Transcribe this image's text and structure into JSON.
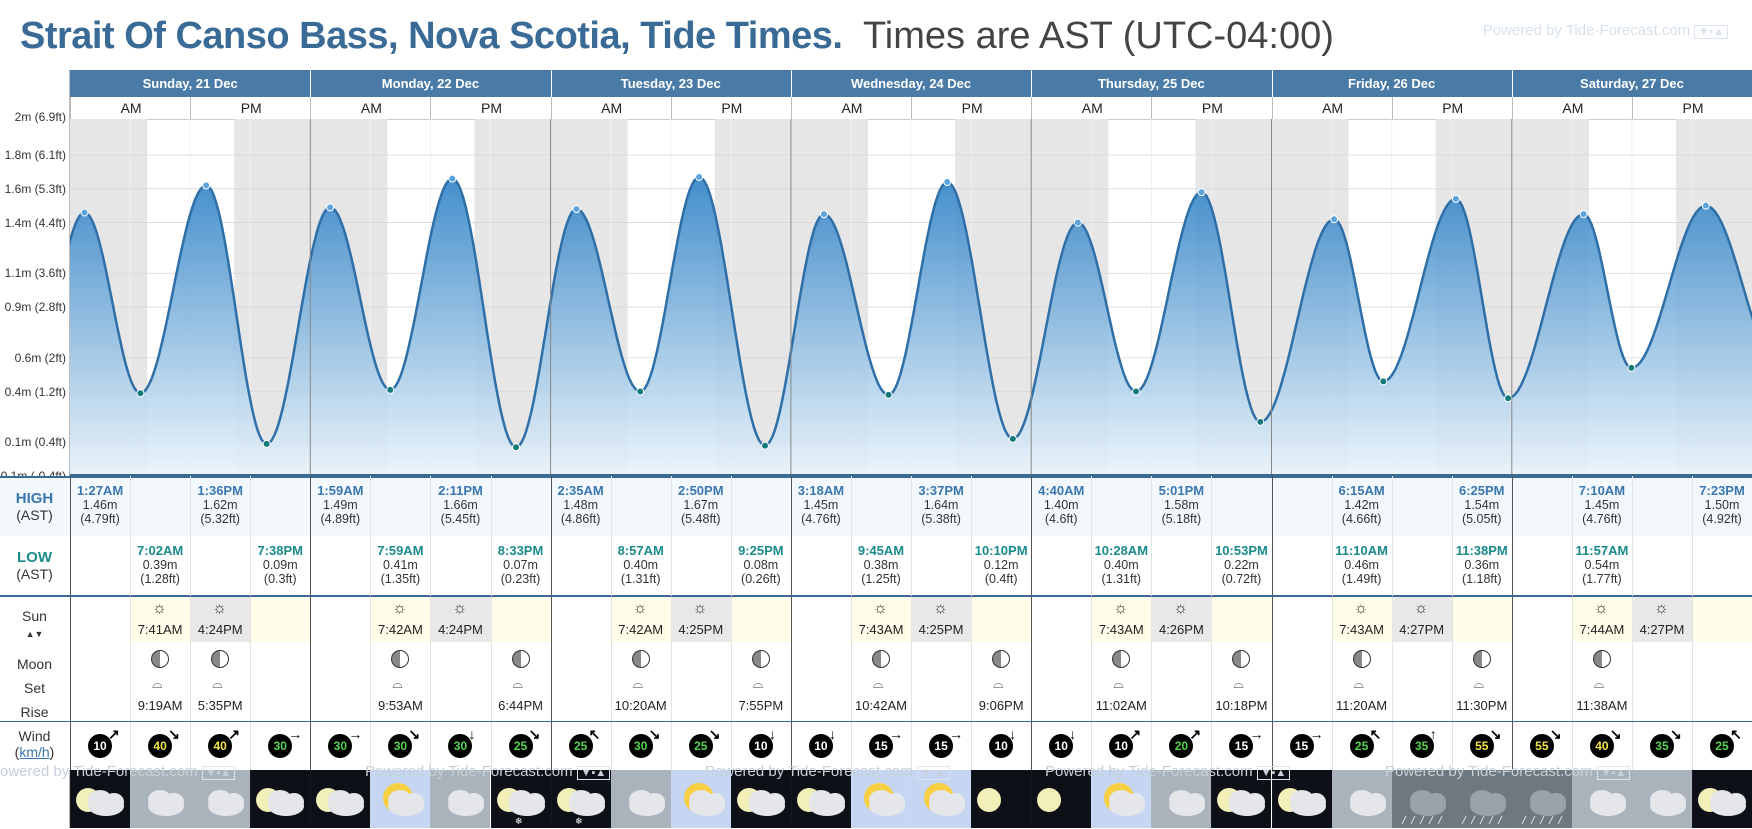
{
  "title": {
    "location": "Strait Of Canso Bass, Nova Scotia, Tide Times.",
    "timezone": "Times are AST (UTC-04:00)"
  },
  "powered_by": "Powered by Tide-Forecast.com",
  "labels": {
    "am": "AM",
    "pm": "PM",
    "high": "HIGH",
    "low": "LOW",
    "ast": "(AST)",
    "sun": "Sun",
    "moon": "Moon",
    "set": "Set",
    "rise": "Rise",
    "wind": "Wind",
    "wind_unit": "km/h"
  },
  "days": [
    "Sunday, 21 Dec",
    "Monday, 22 Dec",
    "Tuesday, 23 Dec",
    "Wednesday, 24 Dec",
    "Thursday, 25 Dec",
    "Friday, 26 Dec",
    "Saturday, 27 Dec"
  ],
  "chart_data": {
    "type": "area",
    "ylabel": "",
    "ylim": [
      -0.1,
      2.0
    ],
    "yticks": [
      "1.8m (6.1ft)",
      "1.6m (5.3ft)",
      "1.4m (4.4ft)",
      "1.1m (3.6ft)",
      "0.9m (2.8ft)",
      "0.6m (2ft)",
      "0.4m (1.2ft)",
      "0.1m (0.4ft)",
      "-0.1m (-0.4ft)"
    ],
    "ytick_values": [
      1.8,
      1.6,
      1.4,
      1.1,
      0.9,
      0.6,
      0.4,
      0.1,
      -0.1
    ],
    "top_tick_partial": "2m (6.9ft)",
    "series": [
      {
        "points": [
          {
            "day": 0,
            "time": "1:27AM",
            "h": 1.46,
            "kind": "high"
          },
          {
            "day": 0,
            "time": "7:02AM",
            "h": 0.39,
            "kind": "low"
          },
          {
            "day": 0,
            "time": "1:36PM",
            "h": 1.62,
            "kind": "high"
          },
          {
            "day": 0,
            "time": "7:38PM",
            "h": 0.09,
            "kind": "low"
          },
          {
            "day": 1,
            "time": "1:59AM",
            "h": 1.49,
            "kind": "high"
          },
          {
            "day": 1,
            "time": "7:59AM",
            "h": 0.41,
            "kind": "low"
          },
          {
            "day": 1,
            "time": "2:11PM",
            "h": 1.66,
            "kind": "high"
          },
          {
            "day": 1,
            "time": "8:33PM",
            "h": 0.07,
            "kind": "low"
          },
          {
            "day": 2,
            "time": "2:35AM",
            "h": 1.48,
            "kind": "high"
          },
          {
            "day": 2,
            "time": "8:57AM",
            "h": 0.4,
            "kind": "low"
          },
          {
            "day": 2,
            "time": "2:50PM",
            "h": 1.67,
            "kind": "high"
          },
          {
            "day": 2,
            "time": "9:25PM",
            "h": 0.08,
            "kind": "low"
          },
          {
            "day": 3,
            "time": "3:18AM",
            "h": 1.45,
            "kind": "high"
          },
          {
            "day": 3,
            "time": "9:45AM",
            "h": 0.38,
            "kind": "low"
          },
          {
            "day": 3,
            "time": "3:37PM",
            "h": 1.64,
            "kind": "high"
          },
          {
            "day": 3,
            "time": "10:10PM",
            "h": 0.12,
            "kind": "low"
          },
          {
            "day": 4,
            "time": "4:40AM",
            "h": 1.4,
            "kind": "high"
          },
          {
            "day": 4,
            "time": "10:28AM",
            "h": 0.4,
            "kind": "low"
          },
          {
            "day": 4,
            "time": "5:01PM",
            "h": 1.58,
            "kind": "high"
          },
          {
            "day": 4,
            "time": "10:53PM",
            "h": 0.22,
            "kind": "low"
          },
          {
            "day": 5,
            "time": "6:15AM",
            "h": 1.42,
            "kind": "high"
          },
          {
            "day": 5,
            "time": "11:10AM",
            "h": 0.46,
            "kind": "low"
          },
          {
            "day": 5,
            "time": "6:25PM",
            "h": 1.54,
            "kind": "high"
          },
          {
            "day": 5,
            "time": "11:38PM",
            "h": 0.36,
            "kind": "low"
          },
          {
            "day": 6,
            "time": "7:10AM",
            "h": 1.45,
            "kind": "high"
          },
          {
            "day": 6,
            "time": "11:57AM",
            "h": 0.54,
            "kind": "low"
          },
          {
            "day": 6,
            "time": "7:23PM",
            "h": 1.5,
            "kind": "high"
          }
        ]
      }
    ]
  },
  "tides": {
    "high": [
      {
        "day": 0,
        "slot": 0,
        "time": "1:27AM",
        "m": "1.46m",
        "ft": "(4.79ft)"
      },
      {
        "day": 0,
        "slot": 2,
        "time": "1:36PM",
        "m": "1.62m",
        "ft": "(5.32ft)"
      },
      {
        "day": 1,
        "slot": 0,
        "time": "1:59AM",
        "m": "1.49m",
        "ft": "(4.89ft)"
      },
      {
        "day": 1,
        "slot": 2,
        "time": "2:11PM",
        "m": "1.66m",
        "ft": "(5.45ft)"
      },
      {
        "day": 2,
        "slot": 0,
        "time": "2:35AM",
        "m": "1.48m",
        "ft": "(4.86ft)"
      },
      {
        "day": 2,
        "slot": 2,
        "time": "2:50PM",
        "m": "1.67m",
        "ft": "(5.48ft)"
      },
      {
        "day": 3,
        "slot": 0,
        "time": "3:18AM",
        "m": "1.45m",
        "ft": "(4.76ft)"
      },
      {
        "day": 3,
        "slot": 2,
        "time": "3:37PM",
        "m": "1.64m",
        "ft": "(5.38ft)"
      },
      {
        "day": 4,
        "slot": 0,
        "time": "4:40AM",
        "m": "1.40m",
        "ft": "(4.6ft)"
      },
      {
        "day": 4,
        "slot": 2,
        "time": "5:01PM",
        "m": "1.58m",
        "ft": "(5.18ft)"
      },
      {
        "day": 5,
        "slot": 1,
        "time": "6:15AM",
        "m": "1.42m",
        "ft": "(4.66ft)"
      },
      {
        "day": 5,
        "slot": 3,
        "time": "6:25PM",
        "m": "1.54m",
        "ft": "(5.05ft)"
      },
      {
        "day": 6,
        "slot": 1,
        "time": "7:10AM",
        "m": "1.45m",
        "ft": "(4.76ft)"
      },
      {
        "day": 6,
        "slot": 3,
        "time": "7:23PM",
        "m": "1.50m",
        "ft": "(4.92ft)"
      }
    ],
    "low": [
      {
        "day": 0,
        "slot": 1,
        "time": "7:02AM",
        "m": "0.39m",
        "ft": "(1.28ft)"
      },
      {
        "day": 0,
        "slot": 3,
        "time": "7:38PM",
        "m": "0.09m",
        "ft": "(0.3ft)"
      },
      {
        "day": 1,
        "slot": 1,
        "time": "7:59AM",
        "m": "0.41m",
        "ft": "(1.35ft)"
      },
      {
        "day": 1,
        "slot": 3,
        "time": "8:33PM",
        "m": "0.07m",
        "ft": "(0.23ft)"
      },
      {
        "day": 2,
        "slot": 1,
        "time": "8:57AM",
        "m": "0.40m",
        "ft": "(1.31ft)"
      },
      {
        "day": 2,
        "slot": 3,
        "time": "9:25PM",
        "m": "0.08m",
        "ft": "(0.26ft)"
      },
      {
        "day": 3,
        "slot": 1,
        "time": "9:45AM",
        "m": "0.38m",
        "ft": "(1.25ft)"
      },
      {
        "day": 3,
        "slot": 3,
        "time": "10:10PM",
        "m": "0.12m",
        "ft": "(0.4ft)"
      },
      {
        "day": 4,
        "slot": 1,
        "time": "10:28AM",
        "m": "0.40m",
        "ft": "(1.31ft)"
      },
      {
        "day": 4,
        "slot": 3,
        "time": "10:53PM",
        "m": "0.22m",
        "ft": "(0.72ft)"
      },
      {
        "day": 5,
        "slot": 1,
        "time": "11:10AM",
        "m": "0.46m",
        "ft": "(1.49ft)"
      },
      {
        "day": 5,
        "slot": 3,
        "time": "11:38PM",
        "m": "0.36m",
        "ft": "(1.18ft)"
      },
      {
        "day": 6,
        "slot": 1,
        "time": "11:57AM",
        "m": "0.54m",
        "ft": "(1.77ft)"
      }
    ]
  },
  "sun": [
    {
      "rise": "7:41AM",
      "set": "4:24PM"
    },
    {
      "rise": "7:42AM",
      "set": "4:24PM"
    },
    {
      "rise": "7:42AM",
      "set": "4:25PM"
    },
    {
      "rise": "7:43AM",
      "set": "4:25PM"
    },
    {
      "rise": "7:43AM",
      "set": "4:26PM"
    },
    {
      "rise": "7:43AM",
      "set": "4:27PM"
    },
    {
      "rise": "7:44AM",
      "set": "4:27PM"
    }
  ],
  "moon": [
    {
      "slot": 1,
      "time": "9:19AM",
      "kind": "rise"
    },
    {
      "slot": 2,
      "time": "5:35PM",
      "kind": "set"
    },
    {
      "slot": 1,
      "time": "9:53AM",
      "kind": "rise"
    },
    {
      "slot": 3,
      "time": "6:44PM",
      "kind": "set"
    },
    {
      "slot": 1,
      "time": "10:20AM",
      "kind": "rise"
    },
    {
      "slot": 3,
      "time": "7:55PM",
      "kind": "set"
    },
    {
      "slot": 1,
      "time": "10:42AM",
      "kind": "rise"
    },
    {
      "slot": 3,
      "time": "9:06PM",
      "kind": "set"
    },
    {
      "slot": 1,
      "time": "11:02AM",
      "kind": "rise"
    },
    {
      "slot": 3,
      "time": "10:18PM",
      "kind": "set"
    },
    {
      "slot": 1,
      "time": "11:20AM",
      "kind": "rise"
    },
    {
      "slot": 3,
      "time": "11:30PM",
      "kind": "set"
    },
    {
      "slot": 1,
      "time": "11:38AM",
      "kind": "rise"
    }
  ],
  "wind": [
    {
      "v": "10",
      "c": "#ffffff",
      "dir": "NE"
    },
    {
      "v": "40",
      "c": "#f1e34a",
      "dir": "SE"
    },
    {
      "v": "40",
      "c": "#f1e34a",
      "dir": "NE"
    },
    {
      "v": "30",
      "c": "#53d24f",
      "dir": "E"
    },
    {
      "v": "30",
      "c": "#53d24f",
      "dir": "E"
    },
    {
      "v": "30",
      "c": "#53d24f",
      "dir": "SE"
    },
    {
      "v": "30",
      "c": "#53d24f",
      "dir": "S"
    },
    {
      "v": "25",
      "c": "#53d24f",
      "dir": "SE"
    },
    {
      "v": "25",
      "c": "#53d24f",
      "dir": "NW"
    },
    {
      "v": "30",
      "c": "#53d24f",
      "dir": "SE"
    },
    {
      "v": "25",
      "c": "#53d24f",
      "dir": "SE"
    },
    {
      "v": "10",
      "c": "#ffffff",
      "dir": "S"
    },
    {
      "v": "10",
      "c": "#ffffff",
      "dir": "S"
    },
    {
      "v": "15",
      "c": "#ffffff",
      "dir": "E"
    },
    {
      "v": "15",
      "c": "#ffffff",
      "dir": "E"
    },
    {
      "v": "10",
      "c": "#ffffff",
      "dir": "S"
    },
    {
      "v": "10",
      "c": "#ffffff",
      "dir": "S"
    },
    {
      "v": "10",
      "c": "#ffffff",
      "dir": "NE"
    },
    {
      "v": "20",
      "c": "#53d24f",
      "dir": "NE"
    },
    {
      "v": "15",
      "c": "#ffffff",
      "dir": "E"
    },
    {
      "v": "15",
      "c": "#ffffff",
      "dir": "E"
    },
    {
      "v": "25",
      "c": "#53d24f",
      "dir": "NW"
    },
    {
      "v": "35",
      "c": "#53d24f",
      "dir": "N"
    },
    {
      "v": "55",
      "c": "#f1e34a",
      "dir": "SE"
    },
    {
      "v": "55",
      "c": "#f1e34a",
      "dir": "SE"
    },
    {
      "v": "40",
      "c": "#f1e34a",
      "dir": "SE"
    },
    {
      "v": "35",
      "c": "#53d24f",
      "dir": "SE"
    },
    {
      "v": "25",
      "c": "#53d24f",
      "dir": "NW"
    }
  ],
  "weather": [
    "moon-cloud",
    "cloud",
    "cloud",
    "moon-cloud",
    "moon-cloud",
    "sun-cloud",
    "cloud",
    "moon-snow",
    "moon-snow",
    "cloud",
    "sun-cloud",
    "moon-cloud",
    "moon-cloud",
    "sun-cloud",
    "sun-cloud",
    "moon-clear",
    "moon-clear",
    "sun-cloud",
    "cloud",
    "moon-cloud",
    "moon-cloud",
    "cloud",
    "rain",
    "rain",
    "rain",
    "cloud",
    "cloud",
    "moon-cloud"
  ],
  "colors": {
    "header": "#4a7ba7",
    "high": "#3a77b0",
    "low": "#1b8a8a",
    "tide_fill_top": "#2f82c6",
    "tide_fill_bottom": "#eaf4fb",
    "night": "#e6e6e6",
    "sun_day": "#fffdea"
  }
}
